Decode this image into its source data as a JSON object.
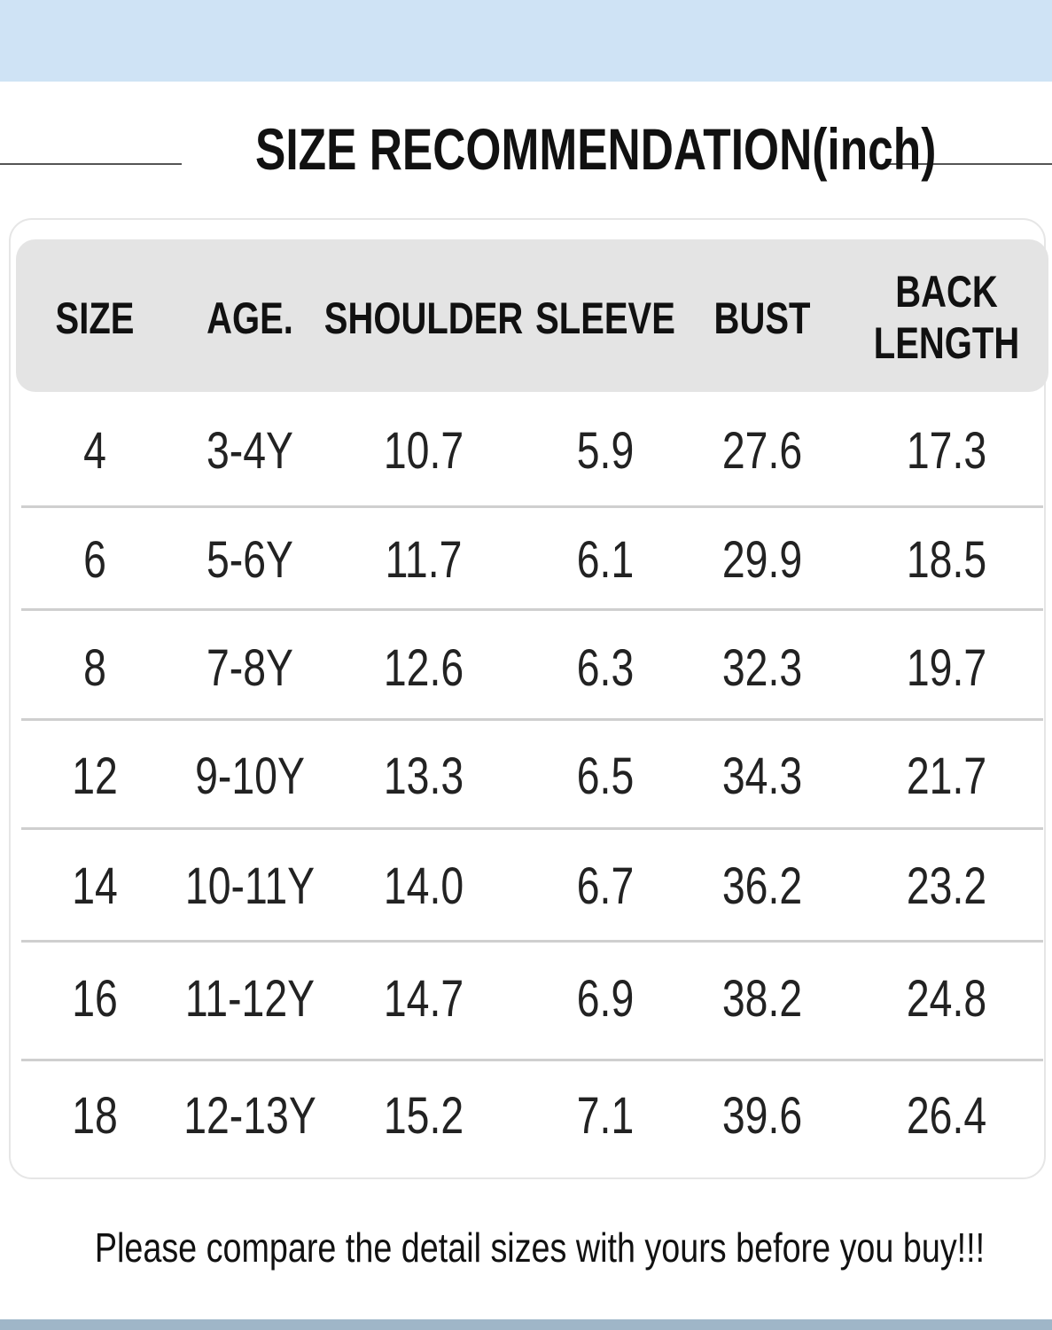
{
  "header": {
    "title": "SIZE RECOMMENDATION(inch)"
  },
  "table": {
    "columns": [
      "SIZE",
      "AGE.",
      "SHOULDER",
      "SLEEVE",
      "BUST",
      "BACK LENGTH"
    ],
    "rows": [
      [
        "4",
        "3-4Y",
        "10.7",
        "5.9",
        "27.6",
        "17.3"
      ],
      [
        "6",
        "5-6Y",
        "11.7",
        "6.1",
        "29.9",
        "18.5"
      ],
      [
        "8",
        "7-8Y",
        "12.6",
        "6.3",
        "32.3",
        "19.7"
      ],
      [
        "12",
        "9-10Y",
        "13.3",
        "6.5",
        "34.3",
        "21.7"
      ],
      [
        "14",
        "10-11Y",
        "14.0",
        "6.7",
        "36.2",
        "23.2"
      ],
      [
        "16",
        "11-12Y",
        "14.7",
        "6.9",
        "38.2",
        "24.8"
      ],
      [
        "18",
        "12-13Y",
        "15.2",
        "7.1",
        "39.6",
        "26.4"
      ]
    ]
  },
  "footer": {
    "note": "Please compare the detail sizes with yours before you buy!!!"
  }
}
